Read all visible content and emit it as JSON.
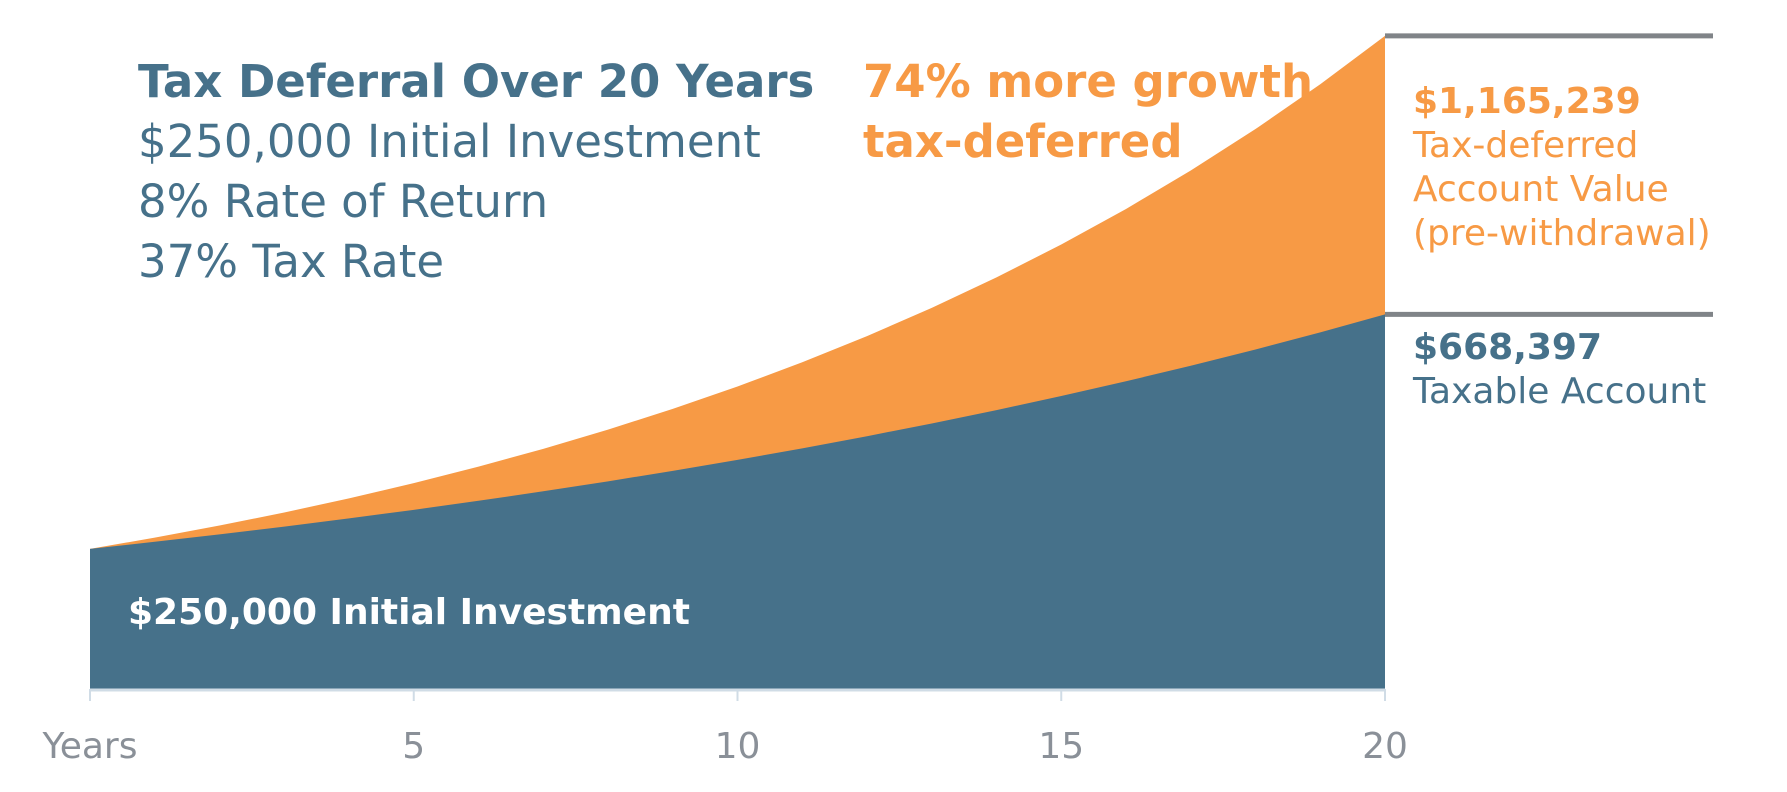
{
  "heading": {
    "title": "Tax Deferral Over 20 Years",
    "lines": [
      "$250,000 Initial Investment",
      "8% Rate of Return",
      "37% Tax Rate"
    ]
  },
  "callout": [
    "74% more growth,",
    "tax-deferred"
  ],
  "end_labels": {
    "tax_deferred": {
      "value": "$1,165,239",
      "lines": [
        "Tax-deferred",
        "Account Value",
        "(pre-withdrawal)"
      ]
    },
    "taxable": {
      "value": "$668,397",
      "lines": [
        "Taxable Account"
      ]
    }
  },
  "base_label": "$250,000 Initial Investment",
  "colors": {
    "tax_deferred": "#f79a45",
    "taxable": "#46718a",
    "axis": "#d0dce6",
    "tick_text": "#8a9098",
    "leader": "#808488"
  },
  "chart_data": {
    "type": "area",
    "xlabel": "Years",
    "ylabel": "",
    "xlim": [
      0,
      20
    ],
    "x_ticks": [
      {
        "value": 0,
        "label": "Years"
      },
      {
        "value": 5,
        "label": "5"
      },
      {
        "value": 10,
        "label": "10"
      },
      {
        "value": 15,
        "label": "15"
      },
      {
        "value": 20,
        "label": "20"
      }
    ],
    "grid": false,
    "initial_investment": 250000,
    "series": [
      {
        "key": "tax_deferred",
        "x": [
          0,
          1,
          2,
          3,
          4,
          5,
          6,
          7,
          8,
          9,
          10,
          11,
          12,
          13,
          14,
          15,
          16,
          17,
          18,
          19,
          20
        ],
        "values": [
          250000,
          270000,
          291600,
          314928,
          340122,
          367332,
          396719,
          428456,
          462732,
          499751,
          539731,
          582909,
          629542,
          679905,
          734297,
          793041,
          856484,
          925003,
          999003,
          1078923,
          1165239
        ]
      },
      {
        "key": "taxable",
        "x": [
          0,
          1,
          2,
          3,
          4,
          5,
          6,
          7,
          8,
          9,
          10,
          11,
          12,
          13,
          14,
          15,
          16,
          17,
          18,
          19,
          20
        ],
        "values": [
          250000,
          262600,
          275835,
          289737,
          304340,
          319679,
          335791,
          352715,
          370492,
          389165,
          408779,
          429381,
          451022,
          473754,
          497631,
          522712,
          549057,
          576730,
          605797,
          636329,
          668397
        ]
      }
    ]
  }
}
